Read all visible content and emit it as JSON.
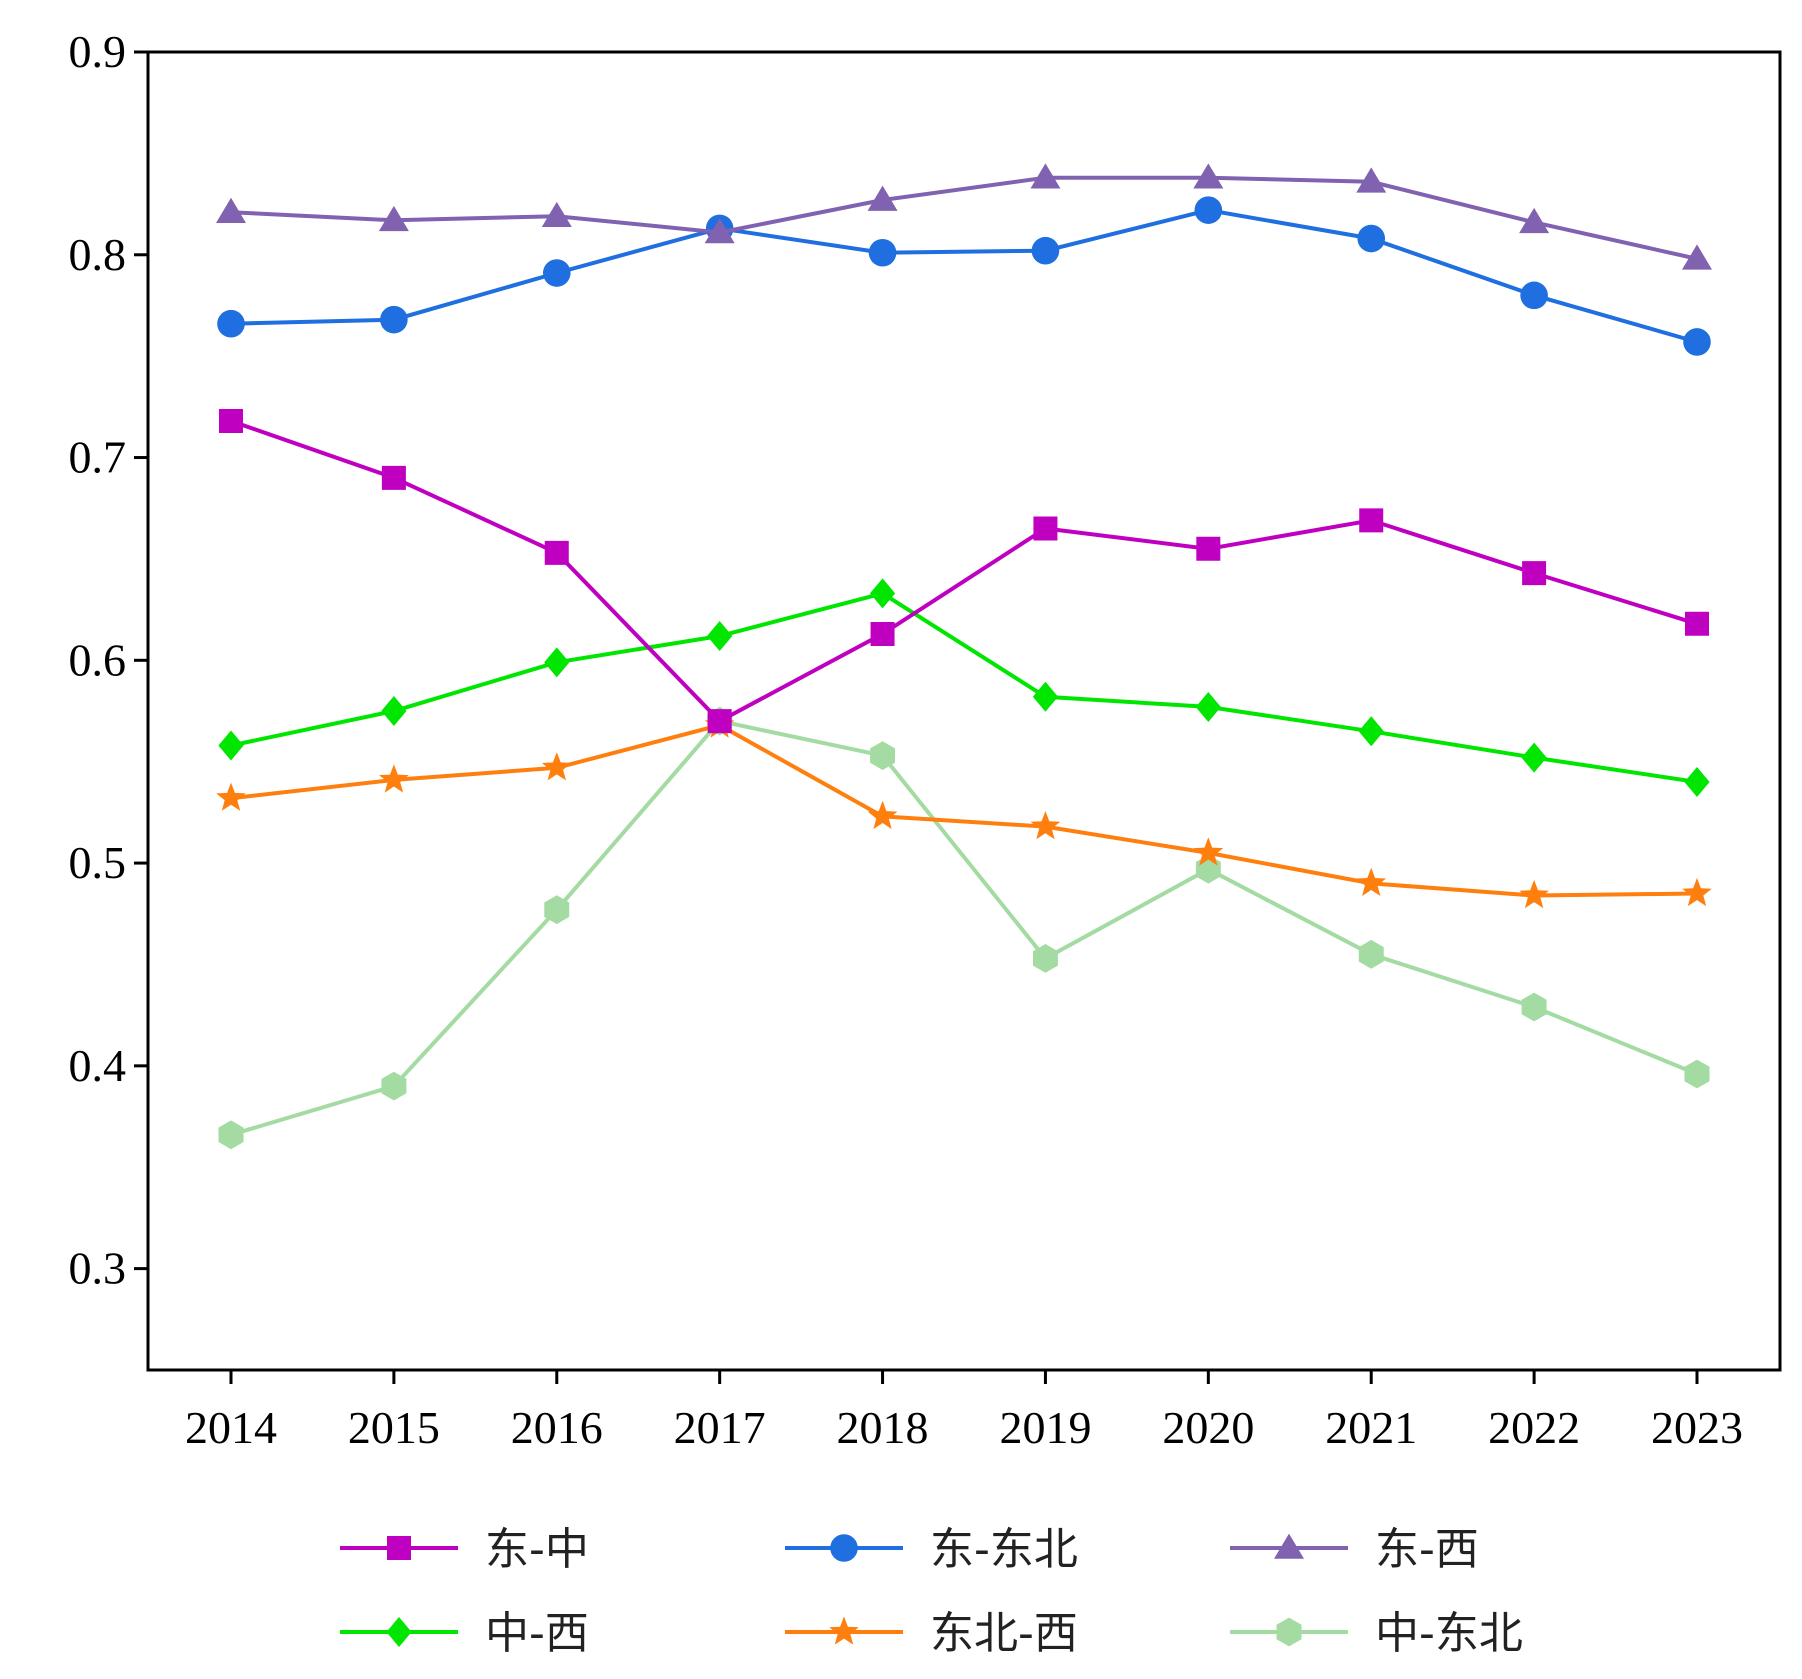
{
  "chart_data": {
    "type": "line",
    "title": "",
    "xlabel": "",
    "ylabel": "",
    "x": [
      "2014",
      "2015",
      "2016",
      "2017",
      "2018",
      "2019",
      "2020",
      "2021",
      "2022",
      "2023"
    ],
    "yticks": [
      "0.3",
      "0.4",
      "0.5",
      "0.6",
      "0.7",
      "0.8",
      "0.9"
    ],
    "ylim": [
      0.25,
      0.9
    ],
    "grid": false,
    "legend_position": "bottom",
    "series": [
      {
        "name": "东-中",
        "marker": "square",
        "color": "#C000C0",
        "values": [
          0.718,
          0.69,
          0.653,
          0.57,
          0.613,
          0.665,
          0.655,
          0.669,
          0.643,
          0.618
        ]
      },
      {
        "name": "东-东北",
        "marker": "circle",
        "color": "#1F6FE0",
        "values": [
          0.766,
          0.768,
          0.791,
          0.813,
          0.801,
          0.802,
          0.822,
          0.808,
          0.78,
          0.757
        ]
      },
      {
        "name": "东-西",
        "marker": "triangle",
        "color": "#8062B0",
        "values": [
          0.821,
          0.817,
          0.819,
          0.811,
          0.827,
          0.838,
          0.838,
          0.836,
          0.816,
          0.798
        ]
      },
      {
        "name": "中-西",
        "marker": "diamond",
        "color": "#00E600",
        "values": [
          0.558,
          0.575,
          0.599,
          0.612,
          0.633,
          0.582,
          0.577,
          0.565,
          0.552,
          0.54
        ]
      },
      {
        "name": "东北-西",
        "marker": "star",
        "color": "#FF7F0E",
        "values": [
          0.532,
          0.541,
          0.547,
          0.568,
          0.523,
          0.518,
          0.505,
          0.49,
          0.484,
          0.485
        ]
      },
      {
        "name": "中-东北",
        "marker": "hexagon",
        "color": "#A3DBA3",
        "values": [
          0.366,
          0.39,
          0.477,
          0.57,
          0.553,
          0.453,
          0.497,
          0.455,
          0.429,
          0.396
        ]
      }
    ]
  }
}
